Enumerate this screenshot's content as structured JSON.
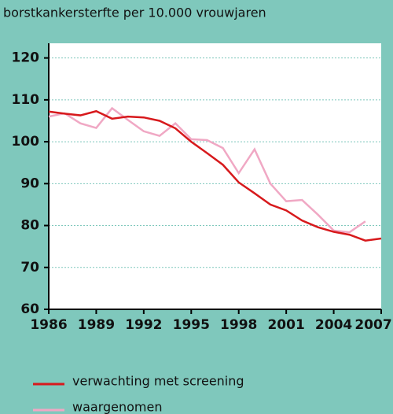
{
  "chart_data": {
    "type": "line",
    "title": "borstkankersterfte per 10.000 vrouwjaren",
    "x": [
      1986,
      1987,
      1988,
      1989,
      1990,
      1991,
      1992,
      1993,
      1994,
      1995,
      1996,
      1997,
      1998,
      1999,
      2000,
      2001,
      2002,
      2003,
      2004,
      2005,
      2006,
      2007
    ],
    "series": [
      {
        "name": "verwachting met screening",
        "color": "#d7191c",
        "values": [
          107.2,
          106.7,
          106.3,
          107.3,
          105.5,
          106,
          105.8,
          105,
          103.2,
          100,
          97.3,
          94.5,
          90.3,
          87.7,
          85,
          83.6,
          81.2,
          79.6,
          78.5,
          77.8,
          76.4,
          76.9
        ]
      },
      {
        "name": "waargenomen",
        "color": "#f0a8c4",
        "values": [
          106,
          106.8,
          104.4,
          103.3,
          108,
          105.2,
          102.5,
          101.4,
          104.4,
          100.6,
          100.4,
          98.5,
          92.5,
          98.2,
          90,
          85.8,
          86.1,
          82.6,
          78.8,
          78.4,
          81,
          null
        ]
      }
    ],
    "xlim": [
      1986,
      2007
    ],
    "xticks": [
      1986,
      1989,
      1992,
      1995,
      1998,
      2001,
      2004,
      2007
    ],
    "ylim": [
      60,
      123.5
    ],
    "yticks": [
      60,
      70,
      80,
      90,
      100,
      110,
      120
    ],
    "grid": true
  }
}
